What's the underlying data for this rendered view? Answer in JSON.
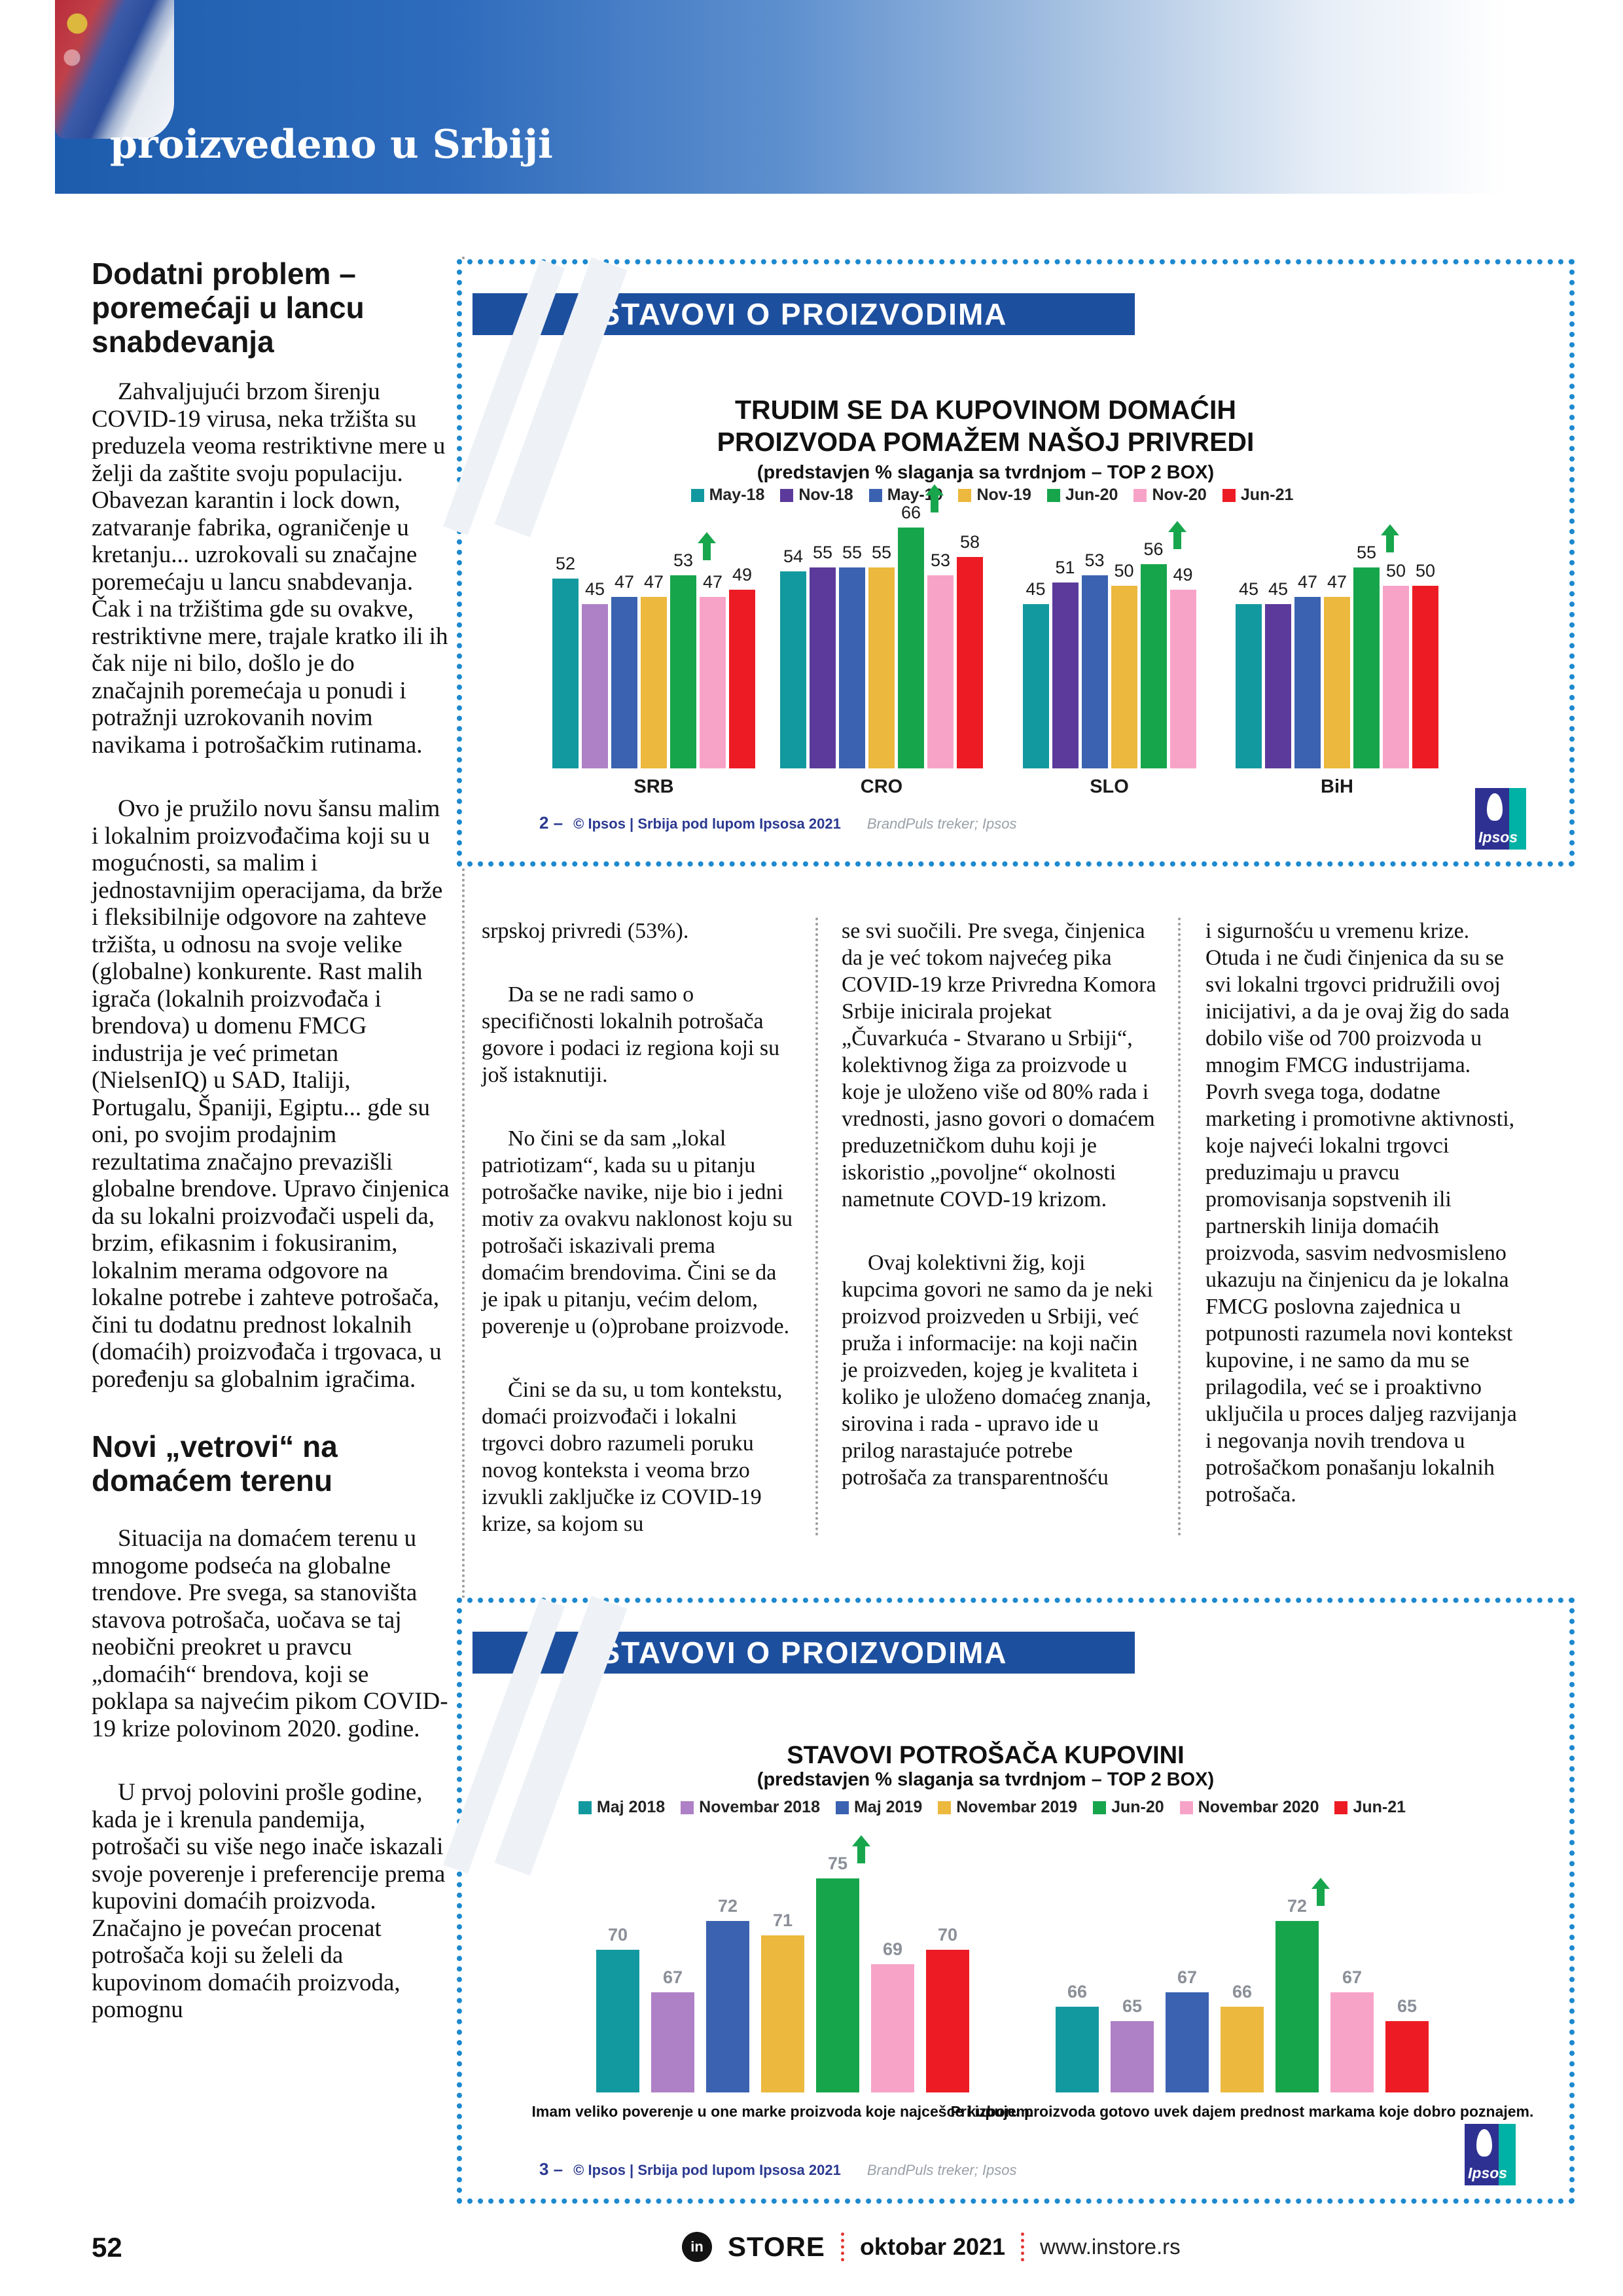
{
  "header": {
    "title": "proizvedeno u Srbiji"
  },
  "article": {
    "heading1": "Dodatni problem – poremećaji u lancu snabdevanja",
    "left_paragraphs_1": [
      "Zahvaljujući brzom širenju COVID-19 virusa, neka tržišta su preduzela veoma restriktivne mere u želji da zaštite svoju populaciju. Obavezan karantin i lock down, zatvaranje fabrika, ograničenje u kretanju... uzrokovali su značajne poremećaju u lancu snabdevanja. Čak i na tržištima gde su ovakve, restriktivne mere, trajale kratko ili ih čak nije ni bilo, došlo je do značajnih poremećaja u ponudi i potražnji uzrokovanih novim navikama i potrošačkim rutinama.",
      "Ovo je pružilo novu šansu malim i lokalnim proizvođačima koji su u mogućnosti, sa malim i jednostavnijim operacijama, da brže i fleksibilnije odgovore na zahteve tržišta, u odnosu na svoje velike (globalne) konkurente. Rast malih igrača (lokalnih proizvođača i brendova) u domenu FMCG industrija je već primetan (NielsenIQ) u SAD, Italiji, Portugalu, Španiji, Egiptu... gde su oni, po svojim prodajnim rezultatima značajno prevazišli globalne brendove. Upravo činjenica da su lokalni proizvođači uspeli da, brzim, efikasnim i fokusiranim, lokalnim merama odgovore na lokalne potrebe i zahteve potrošača, čini tu dodatnu prednost lokalnih (domaćih) proizvođača i trgovaca, u poređenju sa globalnim igračima."
    ],
    "heading2": "Novi „vetrovi“ na domaćem terenu",
    "left_paragraphs_2": [
      "Situacija na domaćem terenu u mnogome podseća na globalne trendove. Pre svega, sa stanovišta stavova potrošača, uočava se taj neobični preokret u pravcu „domaćih“ brendova, koji se poklapa sa najvećim pikom COVID-19 krize polovinom 2020. godine.",
      "U prvoj polovini prošle godine, kada je i krenula pandemija, potrošači su više nego inače iskazali svoje poverenje i preferencije prema kupovini domaćih proizvoda. Značajno je povećan procenat potrošača koji su želeli da kupovinom domaćih proizvoda, pomognu"
    ],
    "column_a": [
      "srpskoj privredi (53%).",
      "Da se ne radi samo o specifičnosti lokalnih potrošača govore i podaci iz regiona koji su još istaknutiji.",
      "No čini se da sam „lokal patriotizam“, kada su u pitanju potrošačke navike, nije bio i jedni motiv za ovakvu naklonost koju su potrošači iskazivali prema domaćim brendovima. Čini se da je ipak u pitanju, većim delom, poverenje u (o)probane proizvode.",
      "Čini se da su, u tom kontekstu, domaći proizvođači i lokalni trgovci dobro razumeli poruku novog konteksta i veoma brzo izvukli zaključke iz COVID-19 krize, sa kojom su"
    ],
    "column_b": [
      "se svi suočili. Pre svega, činjenica da je već tokom najvećeg pika COVID-19 krze Privredna Komora Srbije inicirala projekat „Čuvarkuća - Stvarano u Srbiji“, kolektivnog žiga za proizvode u koje je uloženo više od 80% rada i vrednosti, jasno govori o domaćem preduzetničkom duhu koji je iskoristio „povoljne“ okolnosti nametnute COVD-19 krizom.",
      "Ovaj kolektivni žig, koji kupcima govori ne samo da je neki proizvod proizveden u Srbiji, već pruža i informacije: na koji način je proizveden, kojeg je kvaliteta i koliko je uloženo domaćeg znanja, sirovina i rada - upravo ide u prilog narastajuće potrebe potrošača za transparentnošću"
    ],
    "column_c": [
      "i sigurnošću u vremenu krize. Otuda i ne čudi činjenica da su se svi lokalni trgovci pridružili ovoj inicijativi, a da je ovaj žig do sada dobilo više od 700 proizvoda u mnogim FMCG industrijama. Povrh svega toga, dodatne marketing i promotivne aktivnosti, koje najveći lokalni trgovci preduzimaju u pravcu promovisanja sopstvenih ili partnerskih linija domaćih proizvoda, sasvim nedvosmisleno ukazuju na činjenicu da je lokalna FMCG poslovna zajednica u potpunosti razumela novi kontekst kupovine, i ne samo da mu se prilagodila, već se i proaktivno uključila u proces daljeg razvijanja i negovanja novih trendova u potrošačkom ponašanju lokalnih potrošača."
    ]
  },
  "chart_data": [
    {
      "type": "bar",
      "banner": "STAVOVI O PROIZVODIMA",
      "title": "TRUDIM SE DA KUPOVINOM DOMAĆIH PROIZVODA POMAŽEM NAŠOJ PRIVREDI",
      "subtitle": "(predstavjen % slaganja sa tvrdnjom – TOP 2 BOX)",
      "categories": [
        "SRB",
        "CRO",
        "SLO",
        "BiH"
      ],
      "series": [
        {
          "name": "May-18",
          "color": "#12999f",
          "values": [
            52,
            54,
            45,
            45
          ]
        },
        {
          "name": "Nov-18",
          "color": "#5b3a9b",
          "values": [
            45,
            55,
            51,
            45
          ],
          "overrides": {
            "0": "#ae80c5"
          }
        },
        {
          "name": "May-19",
          "color": "#3a62b0",
          "values": [
            47,
            55,
            53,
            47
          ]
        },
        {
          "name": "Nov-19",
          "color": "#ecb83d",
          "values": [
            47,
            55,
            50,
            47
          ]
        },
        {
          "name": "Jun-20",
          "color": "#17a54b",
          "values": [
            53,
            66,
            56,
            55
          ],
          "arrow": true
        },
        {
          "name": "Nov-20",
          "color": "#f7a3c8",
          "values": [
            47,
            53,
            49,
            50
          ]
        },
        {
          "name": "Jun-21",
          "color": "#ed1c24",
          "values": [
            49,
            58,
            null,
            50
          ]
        }
      ],
      "ylim": [
        0,
        80
      ],
      "grid": false,
      "legend_position": "top",
      "value_labels": true,
      "footer": {
        "number": "2 –",
        "copyright": "© Ipsos | Srbija pod lupom Ipsosa 2021",
        "source": "BrandPuls treker; Ipsos",
        "logo_text": "Ipsos"
      }
    },
    {
      "type": "bar",
      "banner": "STAVOVI O PROIZVODIMA",
      "title": "STAVOVI POTROŠAČA KUPOVINI",
      "subtitle": "(predstavjen % slaganja sa tvrdnjom – TOP 2 BOX)",
      "categories": [
        "Imam veliko poverenje u one marke proizvoda koje najcešce kupujem.",
        "Pri izboru proizvoda gotovo uvek dajem prednost markama koje dobro poznajem."
      ],
      "series": [
        {
          "name": "Maj 2018",
          "color": "#12999f",
          "values": [
            70,
            66
          ]
        },
        {
          "name": "Novembar 2018",
          "color": "#ae80c5",
          "values": [
            67,
            65
          ]
        },
        {
          "name": "Maj 2019",
          "color": "#3a62b0",
          "values": [
            72,
            67
          ]
        },
        {
          "name": "Novembar 2019",
          "color": "#ecb83d",
          "values": [
            71,
            66
          ]
        },
        {
          "name": "Jun-20",
          "color": "#17a54b",
          "values": [
            75,
            72
          ],
          "arrow": true
        },
        {
          "name": "Novembar 2020",
          "color": "#f7a3c8",
          "values": [
            69,
            67
          ]
        },
        {
          "name": "Jun-21",
          "color": "#ed1c24",
          "values": [
            70,
            65
          ]
        }
      ],
      "ylim": [
        60,
        80
      ],
      "grid": false,
      "legend_position": "top",
      "value_labels": true,
      "footer": {
        "number": "3 –",
        "copyright": "© Ipsos | Srbija pod lupom Ipsosa 2021",
        "source": "BrandPuls treker; Ipsos",
        "logo_text": "Ipsos"
      }
    }
  ],
  "footer": {
    "page_number": "52",
    "logo_in": "in",
    "logo_store": "STORE",
    "issue": "oktobar 2021",
    "website": "www.instore.rs"
  }
}
